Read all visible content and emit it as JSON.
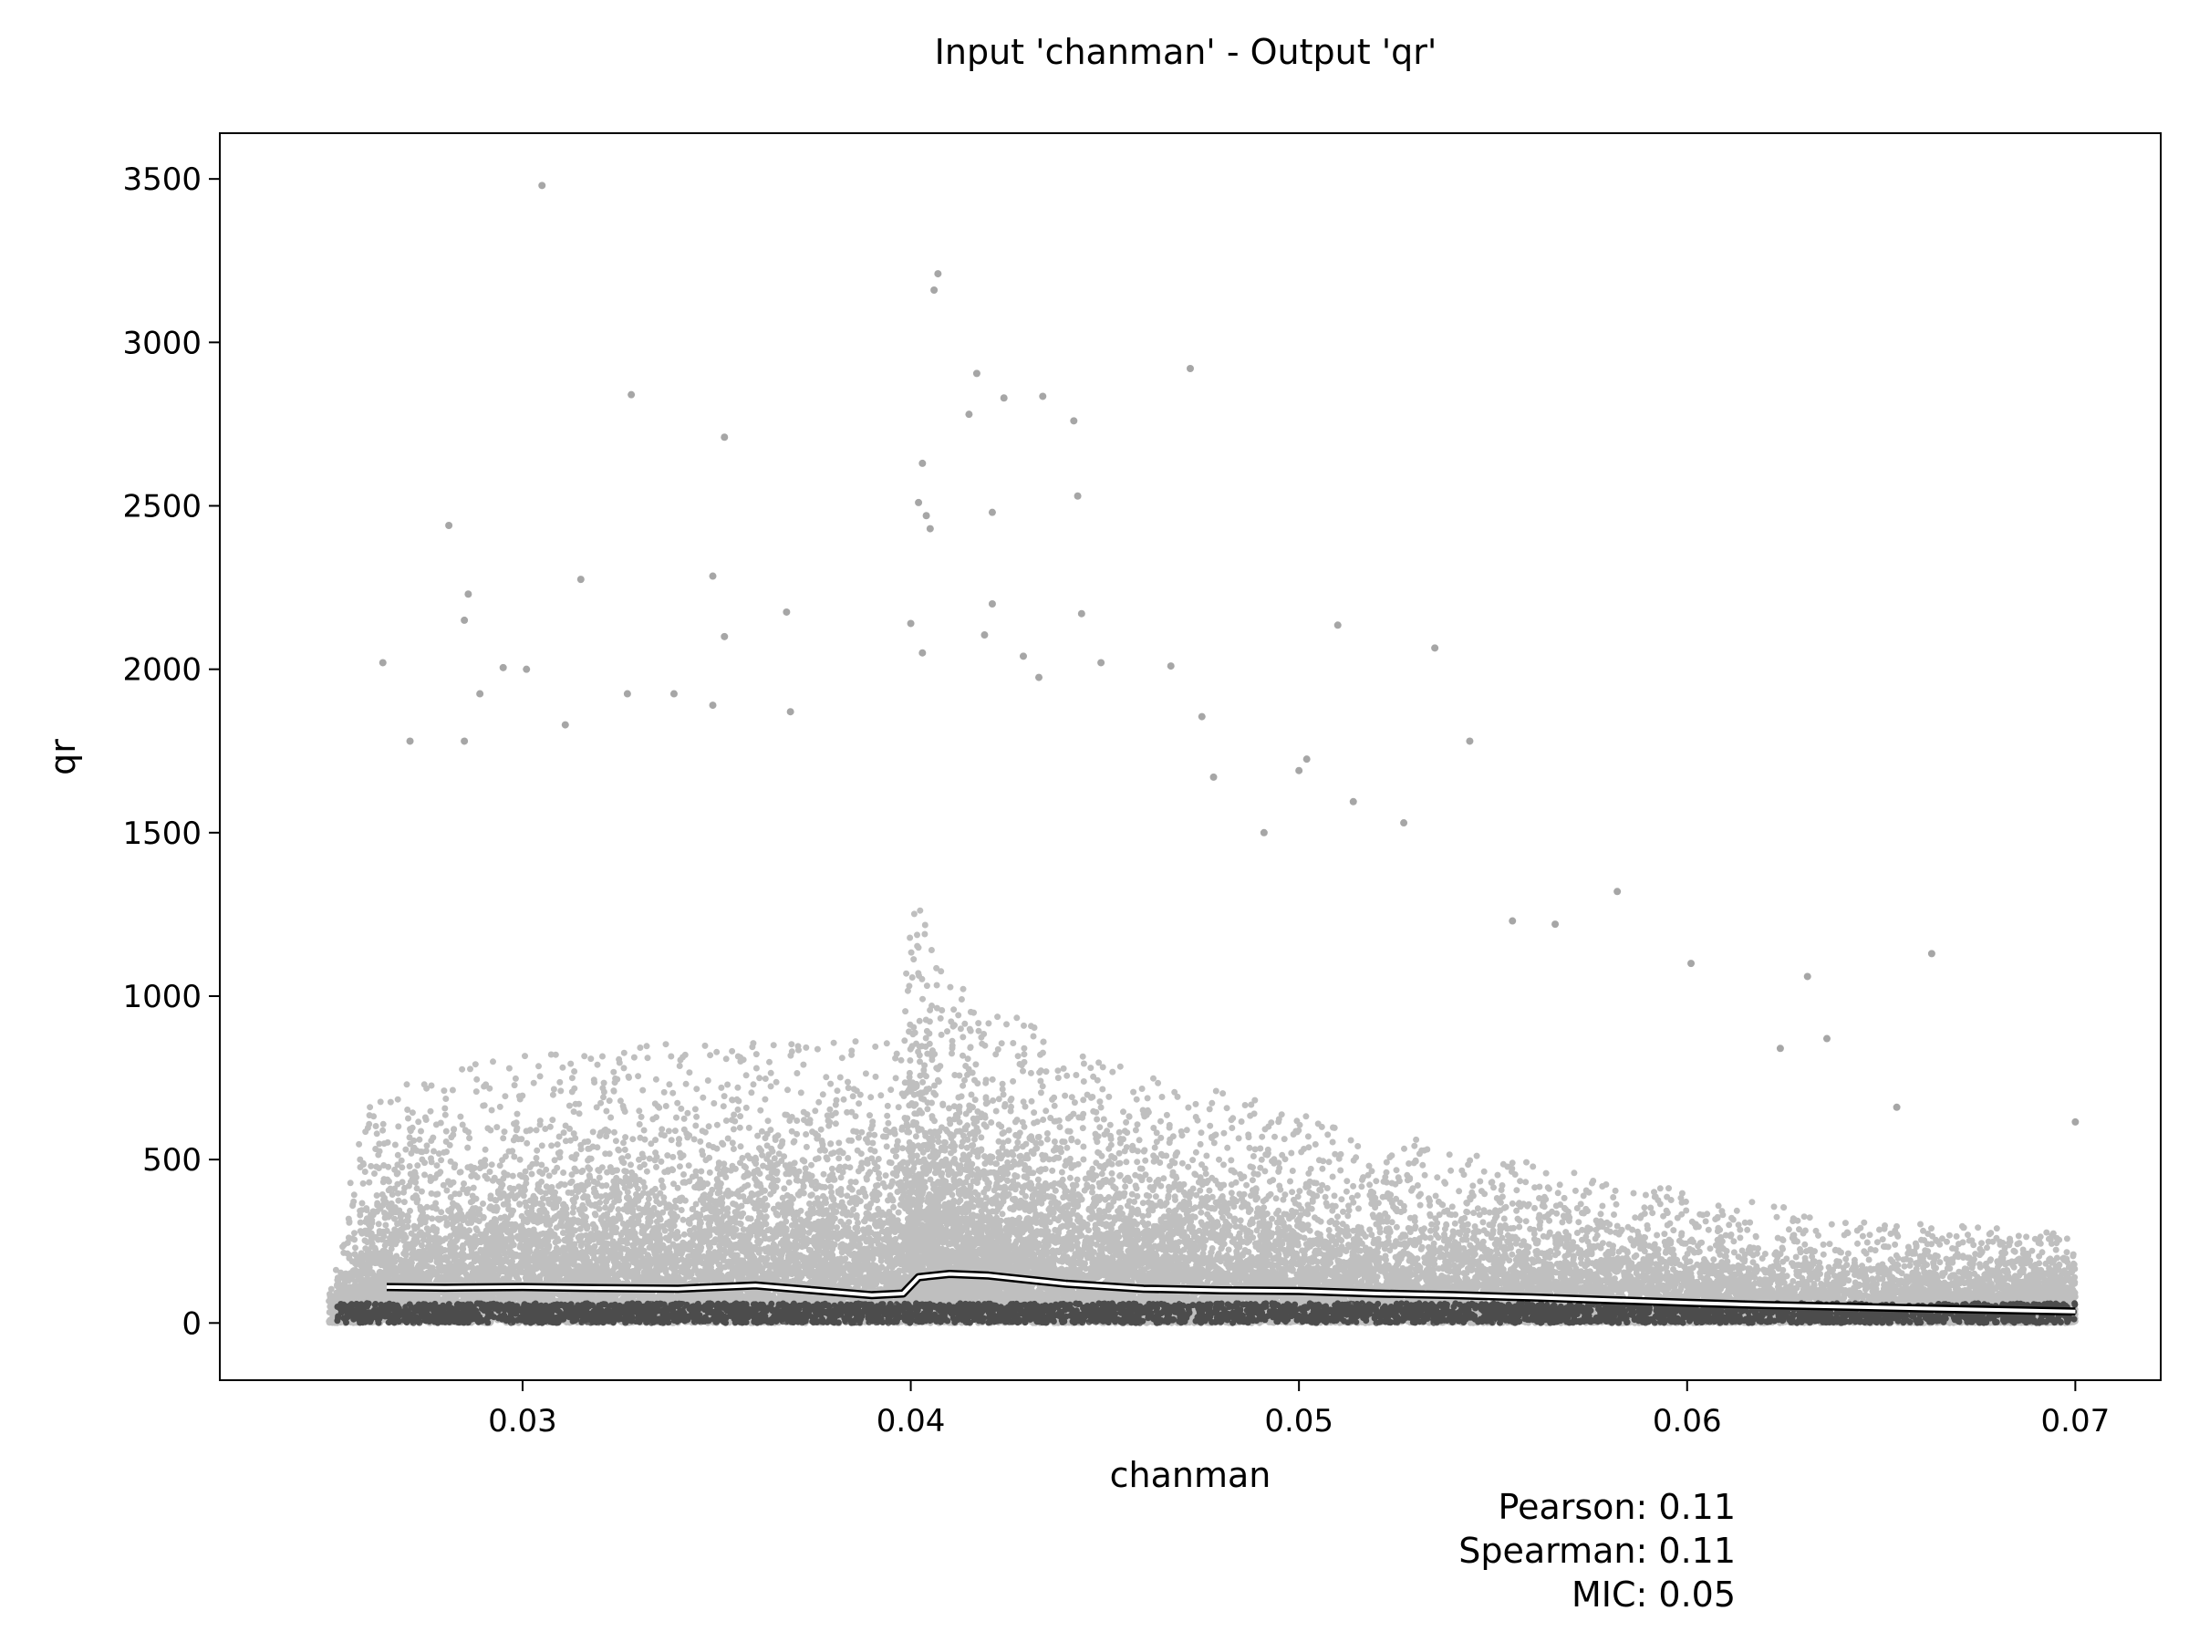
{
  "chart_data": {
    "type": "scatter",
    "title": "Input 'chanman' - Output 'qr'",
    "xlabel": "chanman",
    "ylabel": "qr",
    "xlim": [
      0.0222,
      0.0722
    ],
    "ylim": [
      -175,
      3640
    ],
    "xticks": [
      0.03,
      0.04,
      0.05,
      0.06,
      0.07
    ],
    "xtick_labels": [
      "0.03",
      "0.04",
      "0.05",
      "0.06",
      "0.07"
    ],
    "yticks": [
      0,
      500,
      1000,
      1500,
      2000,
      2500,
      3000,
      3500
    ],
    "ytick_labels": [
      "0",
      "500",
      "1000",
      "1500",
      "2000",
      "2500",
      "3000",
      "3500"
    ],
    "grid": false,
    "marker_color": "#000000",
    "trend_color": "#ffffff",
    "outliers": [
      {
        "x": 0.0305,
        "y": 3480
      },
      {
        "x": 0.0328,
        "y": 2840
      },
      {
        "x": 0.0352,
        "y": 2710
      },
      {
        "x": 0.0281,
        "y": 2440
      },
      {
        "x": 0.0349,
        "y": 2285
      },
      {
        "x": 0.0315,
        "y": 2275
      },
      {
        "x": 0.0286,
        "y": 2230
      },
      {
        "x": 0.0285,
        "y": 2150
      },
      {
        "x": 0.0368,
        "y": 2175
      },
      {
        "x": 0.0352,
        "y": 2100
      },
      {
        "x": 0.0264,
        "y": 2020
      },
      {
        "x": 0.0295,
        "y": 2005
      },
      {
        "x": 0.0301,
        "y": 2000
      },
      {
        "x": 0.0339,
        "y": 1925
      },
      {
        "x": 0.0289,
        "y": 1925
      },
      {
        "x": 0.0327,
        "y": 1925
      },
      {
        "x": 0.0349,
        "y": 1890
      },
      {
        "x": 0.0369,
        "y": 1870
      },
      {
        "x": 0.0311,
        "y": 1830
      },
      {
        "x": 0.0285,
        "y": 1780
      },
      {
        "x": 0.0271,
        "y": 1780
      },
      {
        "x": 0.0407,
        "y": 3210
      },
      {
        "x": 0.0406,
        "y": 3160
      },
      {
        "x": 0.0472,
        "y": 2920
      },
      {
        "x": 0.0417,
        "y": 2905
      },
      {
        "x": 0.0424,
        "y": 2830
      },
      {
        "x": 0.0434,
        "y": 2835
      },
      {
        "x": 0.0415,
        "y": 2780
      },
      {
        "x": 0.0442,
        "y": 2760
      },
      {
        "x": 0.0403,
        "y": 2630
      },
      {
        "x": 0.0443,
        "y": 2530
      },
      {
        "x": 0.0402,
        "y": 2510
      },
      {
        "x": 0.0404,
        "y": 2470
      },
      {
        "x": 0.0405,
        "y": 2430
      },
      {
        "x": 0.0421,
        "y": 2480
      },
      {
        "x": 0.0421,
        "y": 2200
      },
      {
        "x": 0.0444,
        "y": 2170
      },
      {
        "x": 0.051,
        "y": 2135
      },
      {
        "x": 0.04,
        "y": 2140
      },
      {
        "x": 0.0535,
        "y": 2065
      },
      {
        "x": 0.0403,
        "y": 2050
      },
      {
        "x": 0.0419,
        "y": 2105
      },
      {
        "x": 0.0429,
        "y": 2040
      },
      {
        "x": 0.0449,
        "y": 2020
      },
      {
        "x": 0.0467,
        "y": 2010
      },
      {
        "x": 0.0433,
        "y": 1975
      },
      {
        "x": 0.0475,
        "y": 1855
      },
      {
        "x": 0.0544,
        "y": 1780
      },
      {
        "x": 0.0502,
        "y": 1725
      },
      {
        "x": 0.05,
        "y": 1690
      },
      {
        "x": 0.0478,
        "y": 1670
      },
      {
        "x": 0.0514,
        "y": 1595
      },
      {
        "x": 0.0527,
        "y": 1530
      },
      {
        "x": 0.0491,
        "y": 1500
      },
      {
        "x": 0.0582,
        "y": 1320
      },
      {
        "x": 0.0555,
        "y": 1230
      },
      {
        "x": 0.0566,
        "y": 1220
      },
      {
        "x": 0.0663,
        "y": 1130
      },
      {
        "x": 0.0601,
        "y": 1100
      },
      {
        "x": 0.0631,
        "y": 1060
      },
      {
        "x": 0.0624,
        "y": 840
      },
      {
        "x": 0.0636,
        "y": 870
      },
      {
        "x": 0.0654,
        "y": 660
      },
      {
        "x": 0.07,
        "y": 615
      }
    ],
    "density_profile": {
      "x": [
        0.025,
        0.026,
        0.03,
        0.035,
        0.0398,
        0.04,
        0.041,
        0.045,
        0.05,
        0.055,
        0.06,
        0.065,
        0.07
      ],
      "upper_typical": [
        80,
        520,
        620,
        640,
        650,
        1000,
        780,
        600,
        480,
        380,
        300,
        240,
        200
      ],
      "relative_density": [
        0.3,
        1.0,
        1.0,
        1.0,
        1.0,
        2.2,
        1.6,
        1.1,
        0.9,
        0.8,
        0.7,
        0.6,
        1.2
      ]
    },
    "trend_line": {
      "x": [
        0.0265,
        0.028,
        0.03,
        0.032,
        0.034,
        0.036,
        0.0375,
        0.039,
        0.0398,
        0.0402,
        0.041,
        0.042,
        0.044,
        0.046,
        0.048,
        0.05,
        0.052,
        0.054,
        0.056,
        0.058,
        0.06,
        0.062,
        0.064,
        0.066,
        0.068,
        0.07
      ],
      "y": [
        110,
        108,
        110,
        107,
        105,
        115,
        100,
        85,
        90,
        140,
        150,
        145,
        120,
        105,
        100,
        98,
        90,
        85,
        78,
        70,
        62,
        55,
        50,
        45,
        40,
        35
      ]
    },
    "annotations": [
      {
        "label": "Pearson",
        "value": "0.11"
      },
      {
        "label": "Spearman",
        "value": "0.11"
      },
      {
        "label": "MIC",
        "value": "0.05"
      }
    ]
  }
}
